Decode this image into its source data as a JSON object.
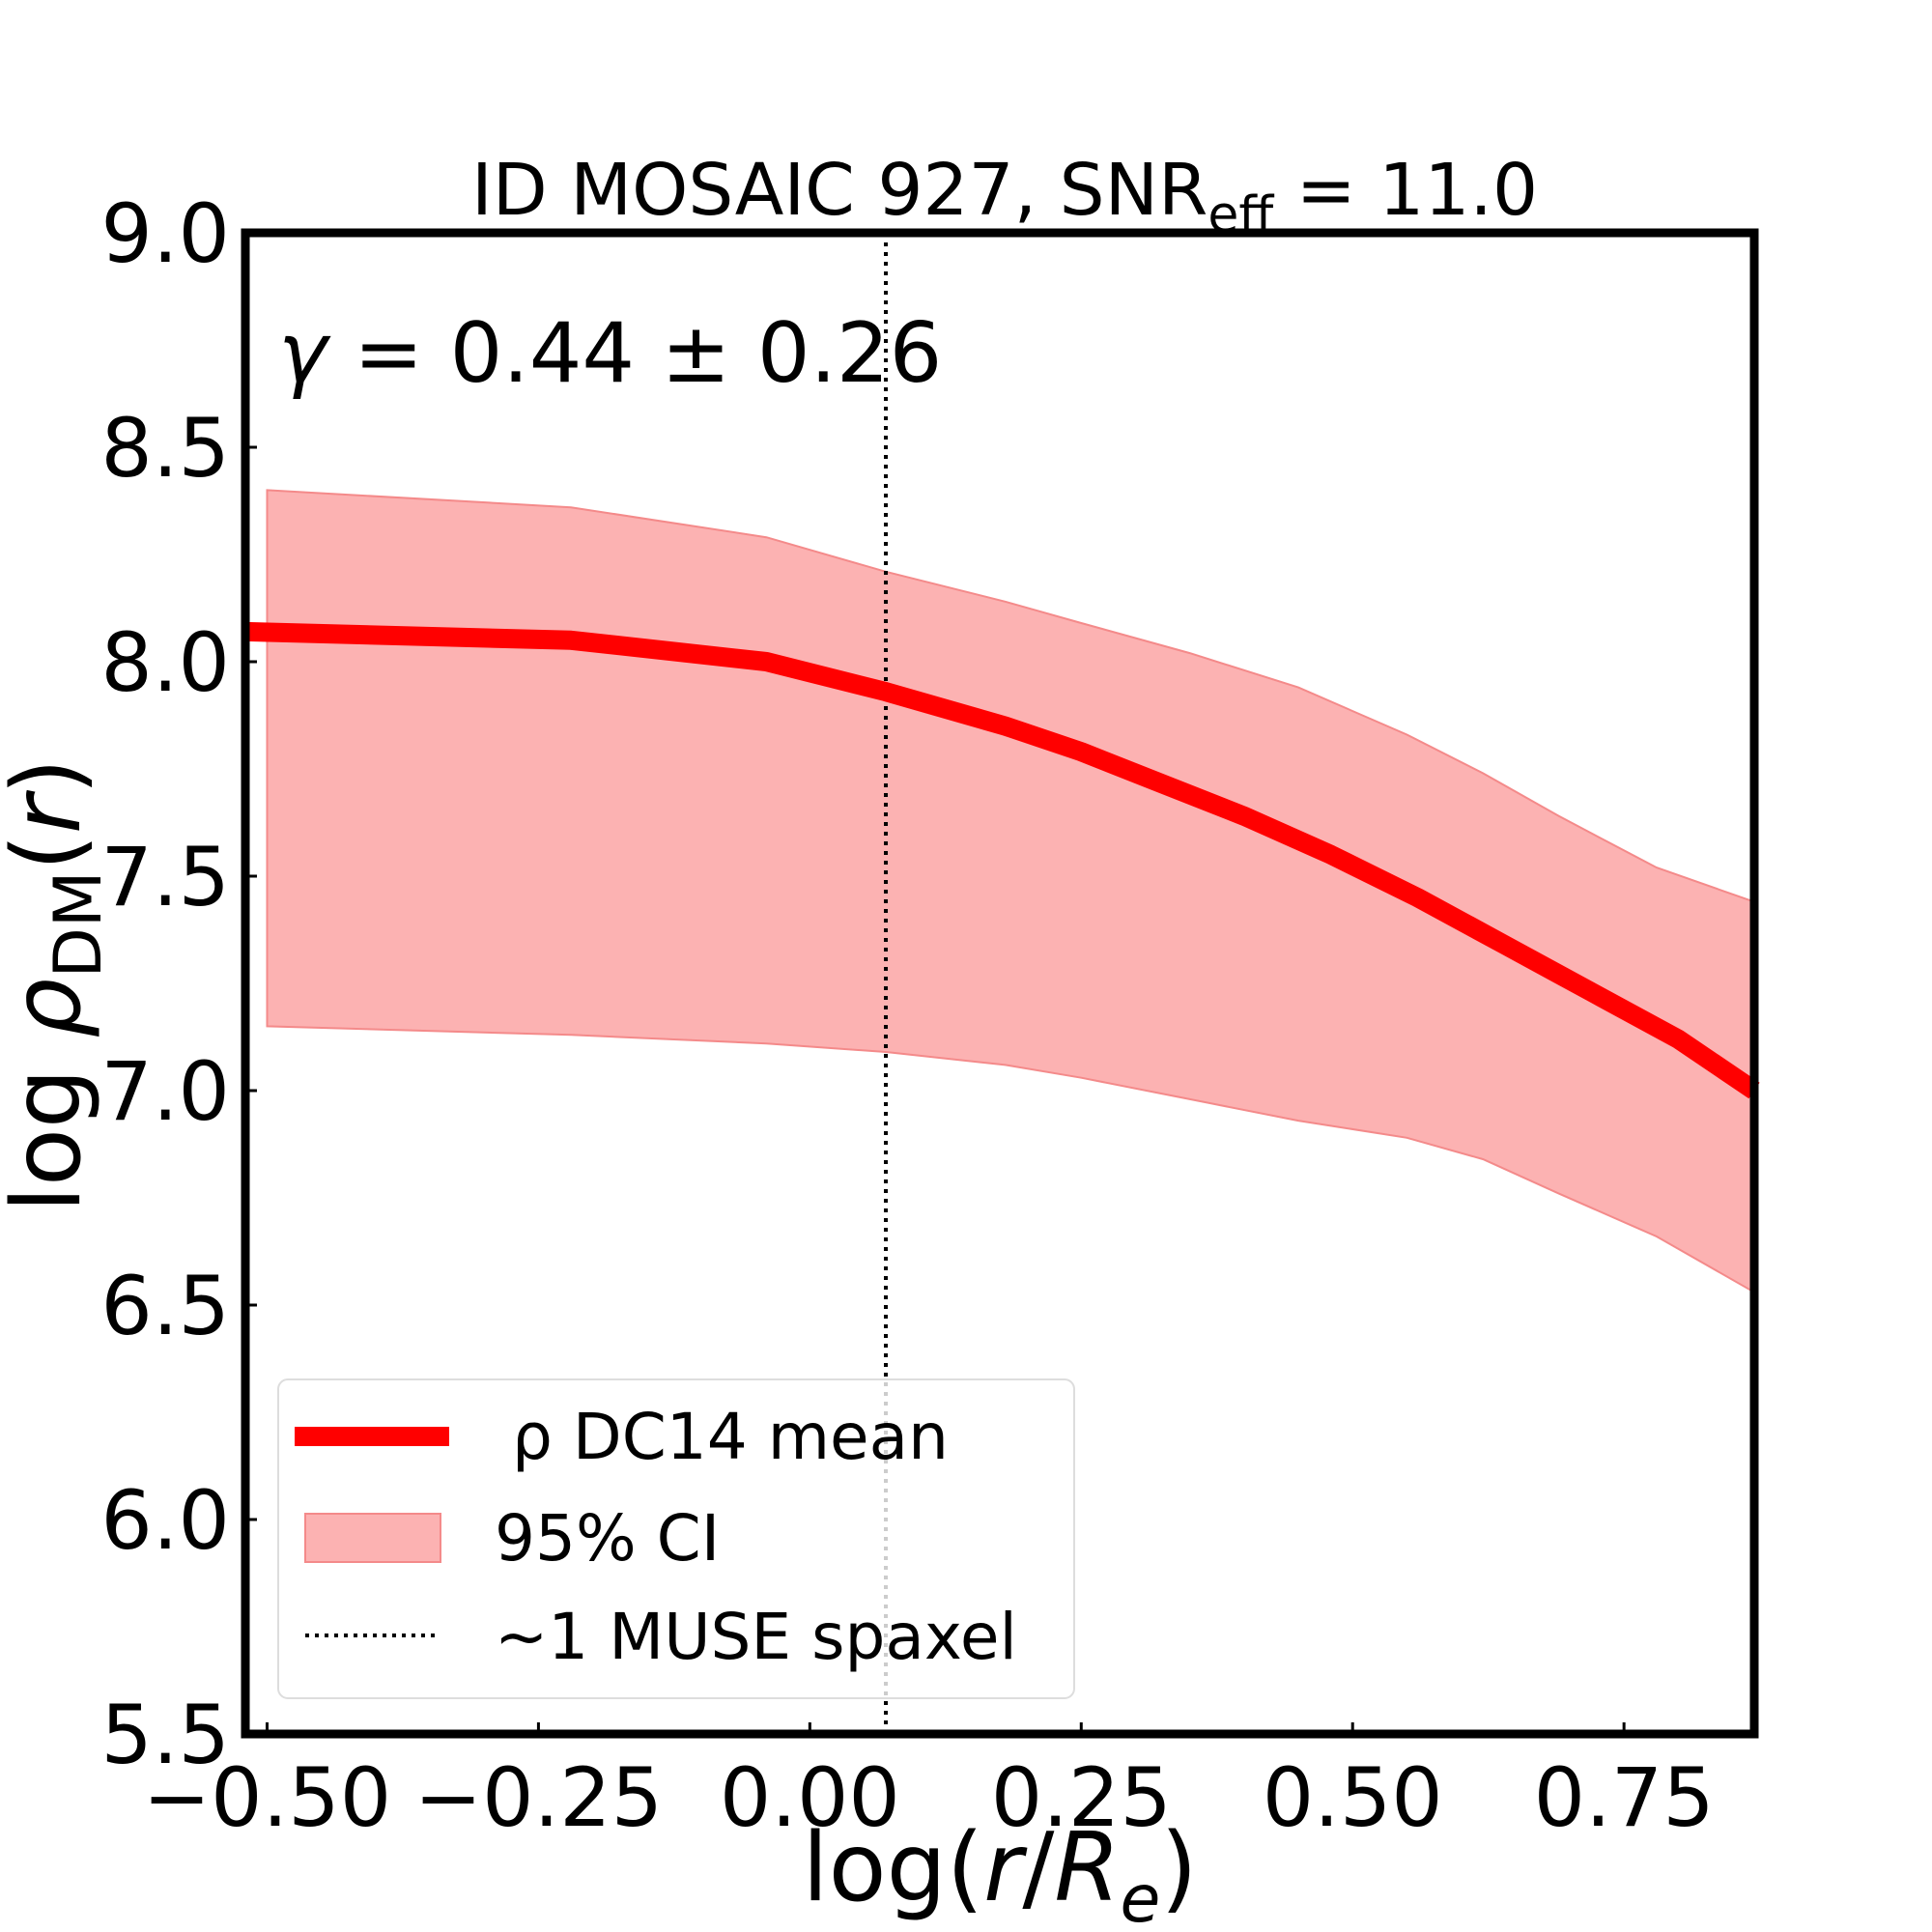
{
  "chart_data": {
    "type": "line",
    "title_main": "ID MOSAIC 927, SNR",
    "title_sub": "eff",
    "title_tail": " = 11.0",
    "xlabel_pre": "log(",
    "xlabel_r": "r",
    "xlabel_slash": "/",
    "xlabel_R": "R",
    "xlabel_e": "e",
    "xlabel_post": ")",
    "ylabel_pre": "log ",
    "ylabel_rho": "ρ",
    "ylabel_sub": "DM",
    "ylabel_open": "(",
    "ylabel_r": "r",
    "ylabel_close": ")",
    "annotation_gamma": "γ",
    "annotation_text": " = 0.44 ± 0.26",
    "xlim": [
      -0.52,
      0.87
    ],
    "ylim": [
      5.5,
      9.0
    ],
    "xticks": [
      -0.5,
      -0.25,
      0.0,
      0.25,
      0.5,
      0.75
    ],
    "xtick_labels": [
      "−0.50",
      "−0.25",
      "0.00",
      "0.25",
      "0.50",
      "0.75"
    ],
    "yticks": [
      5.5,
      6.0,
      6.5,
      7.0,
      7.5,
      8.0,
      8.5,
      9.0
    ],
    "ytick_labels": [
      "5.5",
      "6.0",
      "6.5",
      "7.0",
      "7.5",
      "8.0",
      "8.5",
      "9.0"
    ],
    "grid": false,
    "legend_position": "lower-left",
    "series": [
      {
        "name": "ρ DC14 mean",
        "color": "#ff0000",
        "x": [
          -0.52,
          -0.22,
          -0.04,
          0.07,
          0.18,
          0.25,
          0.32,
          0.4,
          0.48,
          0.56,
          0.64,
          0.72,
          0.8,
          0.87
        ],
        "y": [
          8.07,
          8.05,
          8.0,
          7.93,
          7.85,
          7.79,
          7.72,
          7.64,
          7.55,
          7.45,
          7.34,
          7.23,
          7.12,
          7.0
        ]
      }
    ],
    "band": {
      "name": "95% CI",
      "color": "#fcb2b2",
      "edge_color": "#f48a8a",
      "x": [
        -0.5,
        -0.22,
        -0.04,
        0.07,
        0.18,
        0.25,
        0.35,
        0.45,
        0.55,
        0.62,
        0.69,
        0.78,
        0.87
      ],
      "upper": [
        8.4,
        8.36,
        8.29,
        8.21,
        8.14,
        8.09,
        8.02,
        7.94,
        7.83,
        7.74,
        7.64,
        7.52,
        7.44
      ],
      "lower": [
        7.15,
        7.13,
        7.11,
        7.09,
        7.06,
        7.03,
        6.98,
        6.93,
        6.89,
        6.84,
        6.76,
        6.66,
        6.53
      ]
    },
    "vline": {
      "name": "~1 MUSE spaxel",
      "x": 0.07,
      "color": "#000000"
    }
  }
}
